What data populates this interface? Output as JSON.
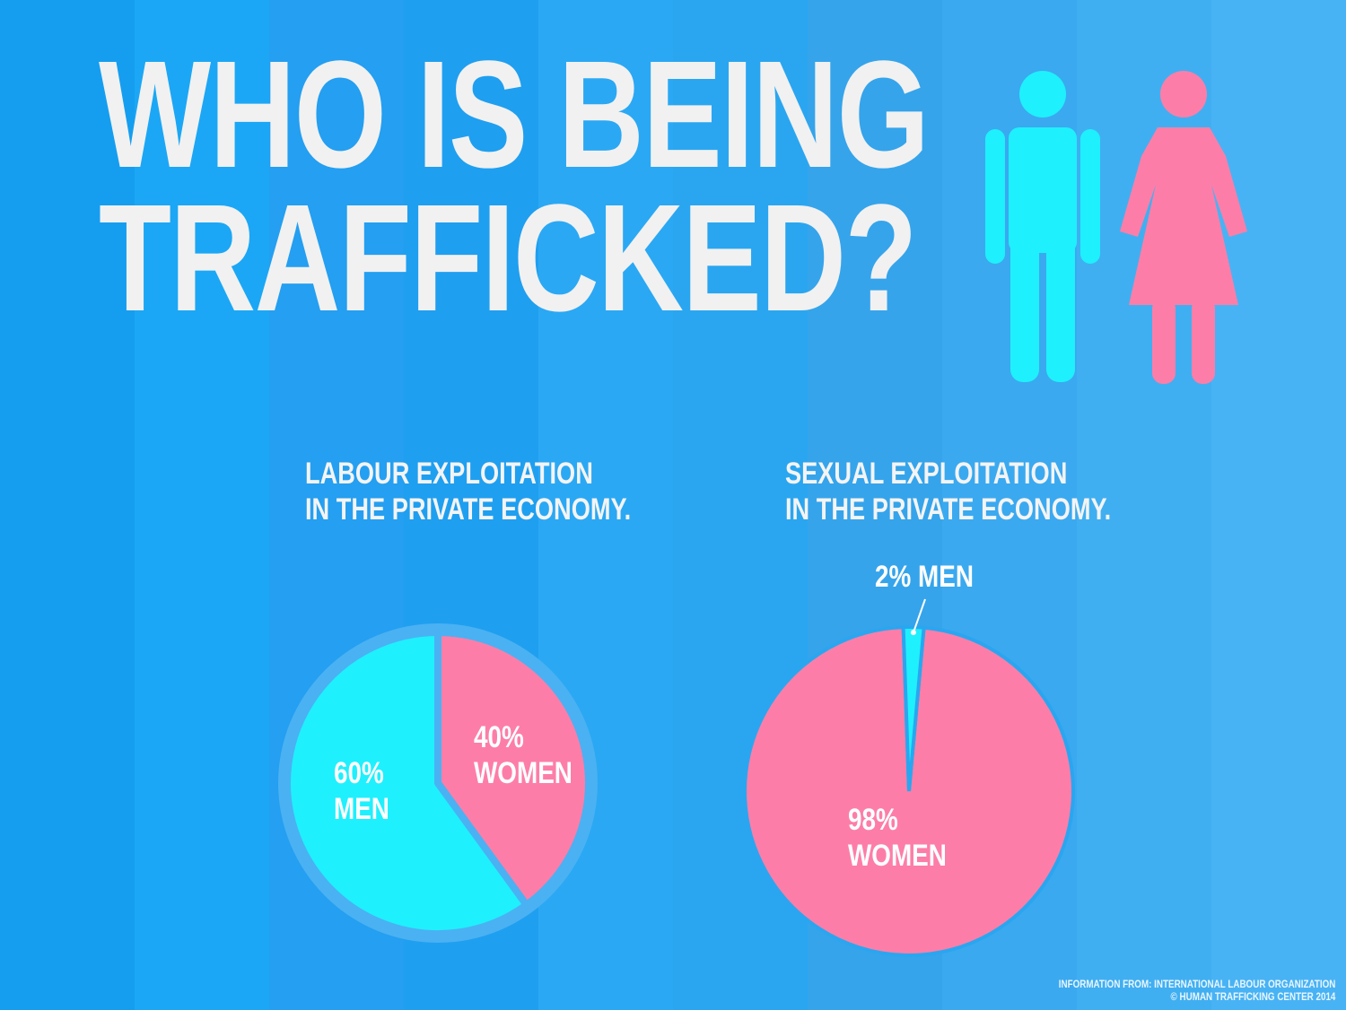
{
  "title_lines": [
    "WHO IS BEING",
    "TRAFFICKED?"
  ],
  "colors": {
    "men": "#1ff0fd",
    "women": "#fc7ea8",
    "pie_ring": "#4ab1f3",
    "text": "#f1f1f1",
    "background_bands": [
      "#159ef0",
      "#1ba7f5",
      "#249ff1",
      "#1f9ff0",
      "#2aa8f4",
      "#2aa6f0",
      "#35a4eb",
      "#3aa9f0",
      "#40aff1",
      "#48b3f4"
    ]
  },
  "icons": {
    "man": "man-figure-icon",
    "woman": "woman-figure-icon"
  },
  "chart_data": [
    {
      "type": "pie",
      "title": "LABOUR EXPLOITATION IN THE PRIVATE ECONOMY.",
      "title_lines": [
        "LABOUR EXPLOITATION",
        "IN THE PRIVATE ECONOMY."
      ],
      "slices": [
        {
          "label": "WOMEN",
          "value": 40,
          "percent_label": "40%",
          "color": "#fc7ea8"
        },
        {
          "label": "MEN",
          "value": 60,
          "percent_label": "60%",
          "color": "#1ff0fd"
        }
      ]
    },
    {
      "type": "pie",
      "title": "SEXUAL EXPLOITATION IN THE PRIVATE ECONOMY.",
      "title_lines": [
        "SEXUAL EXPLOITATION",
        "IN THE PRIVATE ECONOMY."
      ],
      "slices": [
        {
          "label": "MEN",
          "value": 2,
          "percent_label": "2%",
          "color": "#1ff0fd"
        },
        {
          "label": "WOMEN",
          "value": 98,
          "percent_label": "98%",
          "color": "#fc7ea8"
        }
      ]
    }
  ],
  "source": {
    "line1": "INFORMATION FROM: INTERNATIONAL LABOUR ORGANIZATION",
    "line2": "© HUMAN TRAFFICKING CENTER 2014"
  }
}
